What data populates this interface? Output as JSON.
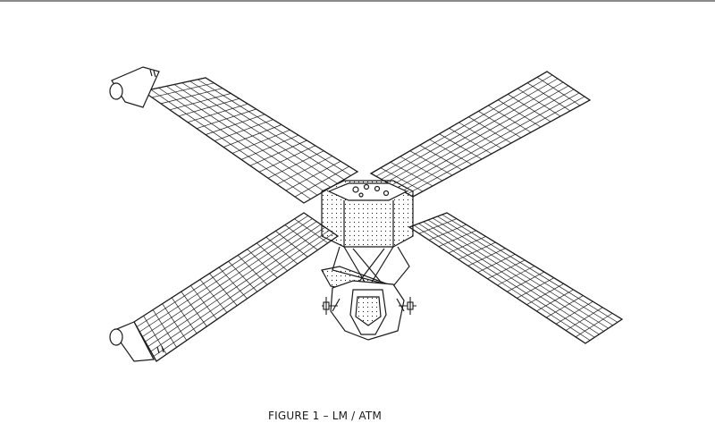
{
  "figure": {
    "caption": "FIGURE 1 – LM / ATM",
    "subject": "LM/ATM spacecraft line drawing with four solar array wings"
  },
  "colors": {
    "background": "#ffffff",
    "ink": "#1a1a1a",
    "top_border": "#8a8a8a"
  }
}
